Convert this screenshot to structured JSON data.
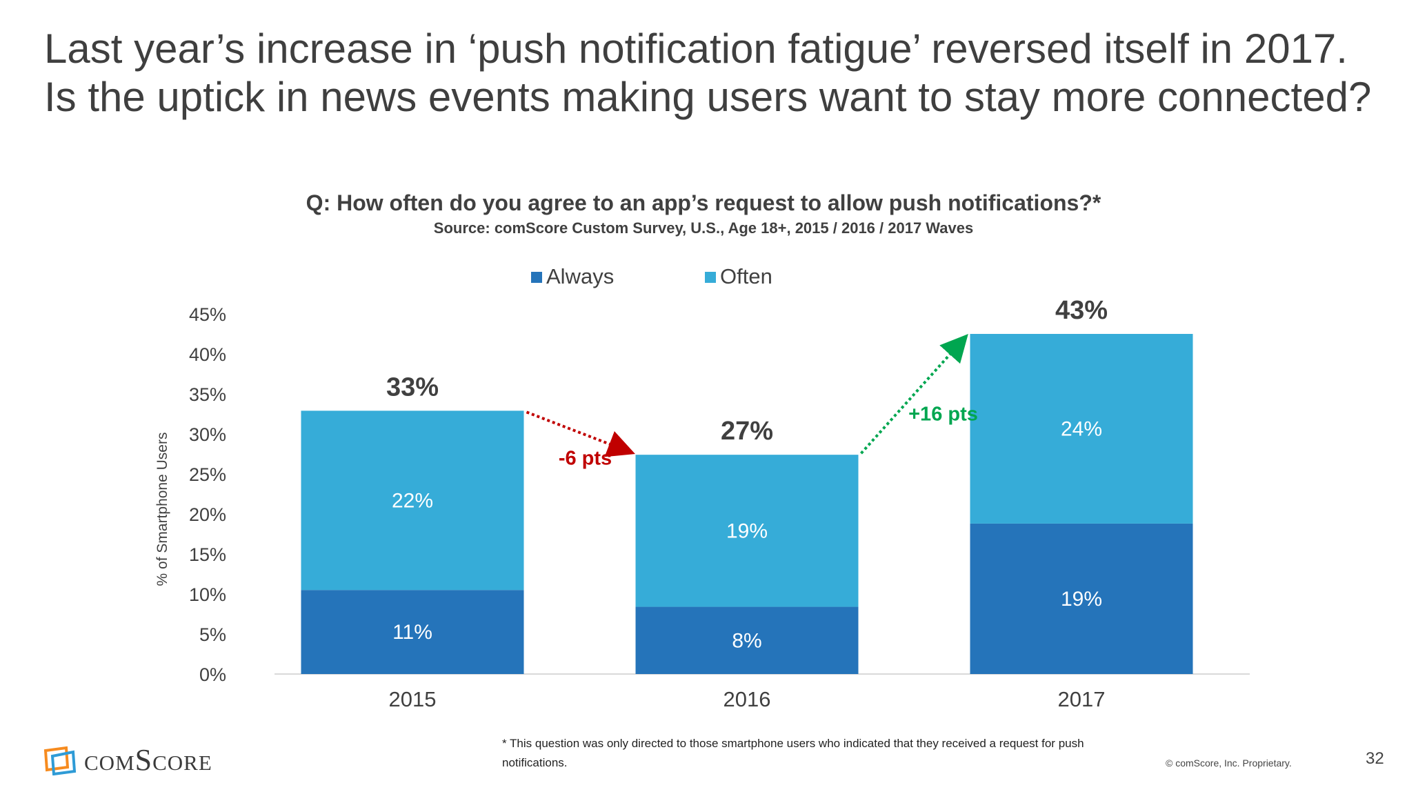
{
  "slide": {
    "title": "Last year’s increase in ‘push notification fatigue’ reversed itself in 2017. Is the uptick in news events making users want to stay more connected?",
    "footnote": "* This question was only directed to those smartphone users who indicated that they received a request for push notifications.",
    "copyright": "© comScore, Inc. Proprietary.",
    "page_number": "32",
    "logo_text": "comScore"
  },
  "colors": {
    "always": "#2574BA",
    "often": "#36ACD8",
    "decrease": "#C00000",
    "increase": "#00A650",
    "text": "#404040"
  },
  "chart_data": {
    "type": "bar",
    "stacked": true,
    "title": "Q: How often do you agree to an app’s request to allow push notifications?*",
    "subtitle": "Source: comScore Custom Survey, U.S., Age 18+, 2015 / 2016 / 2017 Waves",
    "xlabel": "",
    "ylabel": "% of Smartphone Users",
    "ylim": [
      0,
      45
    ],
    "yticks": [
      0,
      5,
      10,
      15,
      20,
      25,
      30,
      35,
      40,
      45
    ],
    "ytick_labels": [
      "0%",
      "5%",
      "10%",
      "15%",
      "20%",
      "25%",
      "30%",
      "35%",
      "40%",
      "45%"
    ],
    "categories": [
      "2015",
      "2016",
      "2017"
    ],
    "legend_position": "top-center",
    "series": [
      {
        "name": "Always",
        "values": [
          10.5,
          8.4,
          18.8
        ],
        "labels": [
          "11%",
          "8%",
          "19%"
        ]
      },
      {
        "name": "Often",
        "values": [
          22.4,
          19,
          23.7
        ],
        "labels": [
          "22%",
          "19%",
          "24%"
        ]
      }
    ],
    "totals": [
      32.9,
      27.4,
      42.5
    ],
    "total_labels": [
      "33%",
      "27%",
      "43%"
    ],
    "annotations": [
      {
        "from": 0,
        "to": 1,
        "text": "-6 pts",
        "direction": "down"
      },
      {
        "from": 1,
        "to": 2,
        "text": "+16 pts",
        "direction": "up"
      }
    ]
  }
}
